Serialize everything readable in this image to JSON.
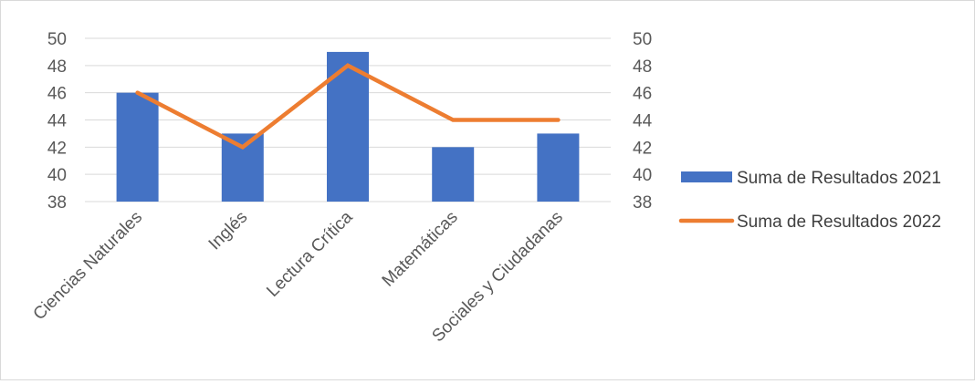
{
  "chart_data": {
    "type": "bar",
    "title": "",
    "categories": [
      "Ciencias Naturales",
      "Inglés",
      "Lectura Crítica",
      "Matemáticas",
      "Sociales y Ciudadanas"
    ],
    "series": [
      {
        "name": "Suma de Resultados 2021",
        "type": "bar",
        "axis": "left",
        "color": "#4472C4",
        "values": [
          46,
          43,
          49,
          42,
          43
        ]
      },
      {
        "name": "Suma de Resultados 2022",
        "type": "line",
        "axis": "right",
        "color": "#ED7D31",
        "values": [
          46,
          42,
          48,
          44,
          44
        ]
      }
    ],
    "ylim": [
      38,
      50
    ],
    "y2lim": [
      38,
      50
    ],
    "yticks": [
      "38",
      "40",
      "42",
      "44",
      "46",
      "48",
      "50"
    ],
    "y2ticks": [
      "38",
      "40",
      "42",
      "44",
      "46",
      "48",
      "50"
    ],
    "grid": true,
    "legend_position": "right"
  }
}
